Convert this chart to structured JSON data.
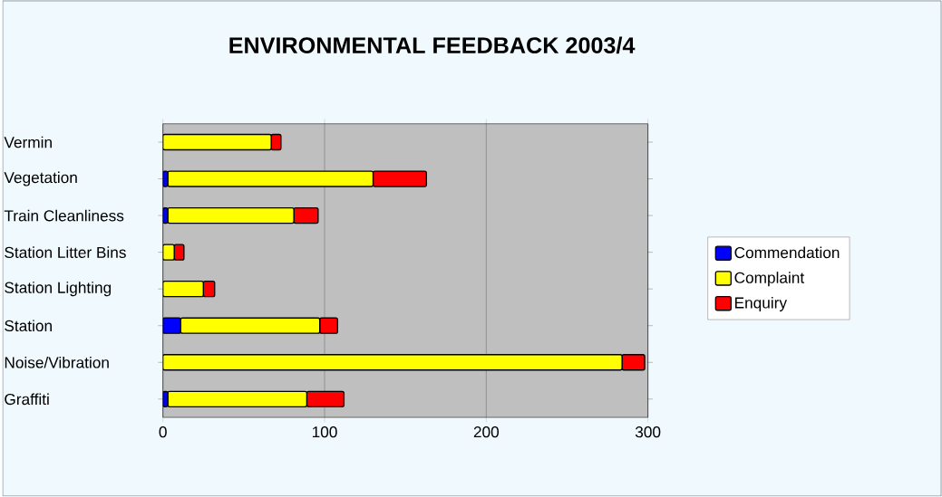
{
  "chart_data": {
    "type": "bar",
    "orientation": "horizontal",
    "stacked": true,
    "title": "ENVIRONMENTAL FEEDBACK 2003/4",
    "categories": [
      "Vermin",
      "Vegetation",
      "Train Cleanliness",
      "Station Litter Bins",
      "Station Lighting",
      "Station",
      "Noise/Vibration",
      "Graffiti"
    ],
    "series": [
      {
        "name": "Commendation",
        "color": "#0000ff",
        "values": [
          0,
          3,
          3,
          0,
          0,
          11,
          0,
          3
        ]
      },
      {
        "name": "Complaint",
        "color": "#ffff00",
        "values": [
          67,
          127,
          78,
          7,
          25,
          86,
          284,
          86
        ]
      },
      {
        "name": "Enquiry",
        "color": "#ff0000",
        "values": [
          6,
          33,
          15,
          6,
          7,
          11,
          14,
          23
        ]
      }
    ],
    "xlim": [
      0,
      300
    ],
    "xticks": [
      0,
      100,
      200,
      300
    ],
    "grid": "x",
    "legend": "right"
  }
}
